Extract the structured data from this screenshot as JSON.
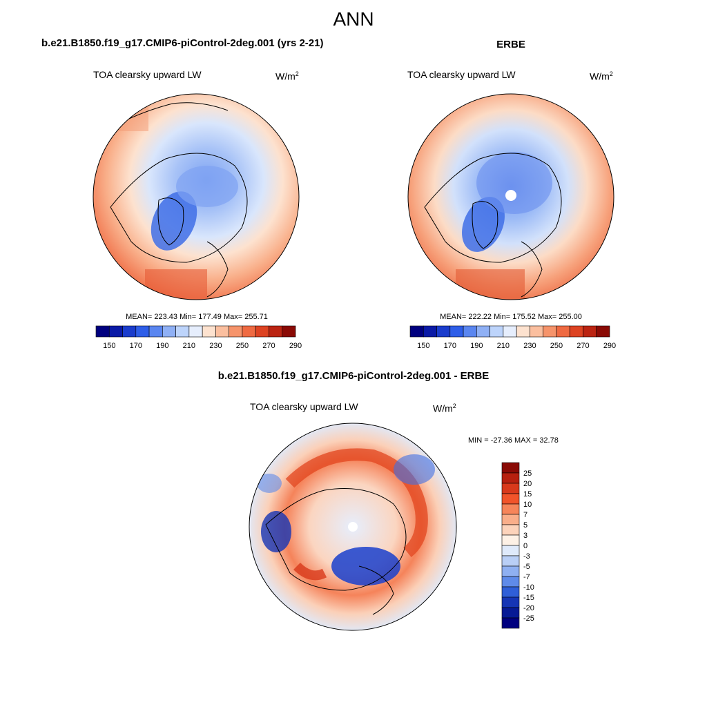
{
  "figure": {
    "title": "ANN"
  },
  "panels": [
    {
      "heading": "b.e21.B1850.f19_g17.CMIP6-piControl-2deg.001 (yrs 2-21)",
      "variable": "TOA clearsky upward LW",
      "units_base": "W/m",
      "units_exp": "2",
      "stats": "MEAN= 223.43  Min= 177.49  Max= 255.71",
      "colorbar_ticks": [
        "150",
        "170",
        "190",
        "210",
        "230",
        "250",
        "270",
        "290"
      ]
    },
    {
      "heading": "ERBE",
      "variable": "TOA clearsky upward LW",
      "units_base": "W/m",
      "units_exp": "2",
      "stats": "MEAN= 222.22  Min= 175.52  Max= 255.00",
      "colorbar_ticks": [
        "150",
        "170",
        "190",
        "210",
        "230",
        "250",
        "270",
        "290"
      ]
    }
  ],
  "difference": {
    "heading": "b.e21.B1850.f19_g17.CMIP6-piControl-2deg.001 - ERBE",
    "variable": "TOA clearsky upward LW",
    "units_base": "W/m",
    "units_exp": "2",
    "stats": "MIN = -27.36 MAX =  32.78",
    "colorbar_ticks": [
      "25",
      "20",
      "15",
      "10",
      "7",
      "5",
      "3",
      "0",
      "-3",
      "-5",
      "-7",
      "-10",
      "-15",
      "-20",
      "-25"
    ]
  },
  "colors": {
    "abs_scale": [
      "#00007f",
      "#0a1aa6",
      "#1a3ccc",
      "#2e5ee8",
      "#5a86f0",
      "#8fb0f5",
      "#bdd4fb",
      "#e6eefd",
      "#fde2cf",
      "#fbbf9f",
      "#f6946b",
      "#ef6a42",
      "#dd4322",
      "#bb2412",
      "#8a0a05"
    ],
    "diff_scale": [
      "#8a0a05",
      "#b7200f",
      "#d8391b",
      "#f1542a",
      "#f6855a",
      "#f9ae8a",
      "#fcd3bb",
      "#fdf1e6",
      "#dfeafb",
      "#b9cff6",
      "#8fb0f1",
      "#5f8be9",
      "#2f5fd8",
      "#1535b5",
      "#061a95",
      "#00007f"
    ]
  }
}
